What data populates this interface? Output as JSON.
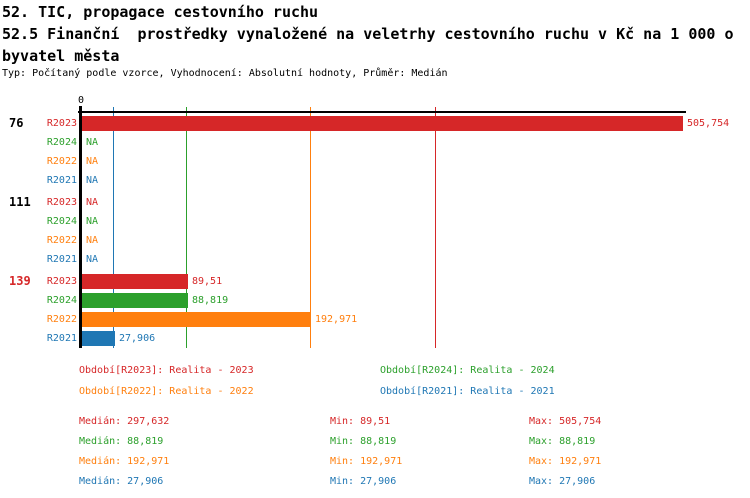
{
  "header": {
    "line1": "52. TIC, propagace cestovního ruchu",
    "line2": "52.5 Finanční  prostředky vynaložené na veletrhy cestovního ruchu v Kč na 1 000 o",
    "line3": "byvatel města",
    "meta": "Typ: Počítaný podle vzorce, Vyhodnocení: Absolutní hodnoty, Průměr: Medián"
  },
  "colors": {
    "R2023": "#d62728",
    "R2024": "#2ca02c",
    "R2022": "#ff7f0e",
    "R2021": "#1f77b4",
    "axis": "#000000",
    "selected_group": "#d62728"
  },
  "chart_data": {
    "type": "bar",
    "orientation": "horizontal",
    "title": "52.5 Finanční prostředky vynaložené na veletrhy cestovního ruchu v Kč na 1 000 obyvatel města",
    "x_axis": {
      "zero_label": "0",
      "max_value": 505.754,
      "grid": "median-lines-per-series"
    },
    "na_text": "NA",
    "series_order": [
      "R2023",
      "R2024",
      "R2022",
      "R2021"
    ],
    "groups": [
      {
        "label": "76",
        "label_color": "#000000",
        "values": {
          "R2023": {
            "num": 505.754,
            "display": "505,754"
          },
          "R2024": {
            "num": null,
            "display": "NA"
          },
          "R2022": {
            "num": null,
            "display": "NA"
          },
          "R2021": {
            "num": null,
            "display": "NA"
          }
        }
      },
      {
        "label": "111",
        "label_color": "#000000",
        "values": {
          "R2023": {
            "num": null,
            "display": "NA"
          },
          "R2024": {
            "num": null,
            "display": "NA"
          },
          "R2022": {
            "num": null,
            "display": "NA"
          },
          "R2021": {
            "num": null,
            "display": "NA"
          }
        }
      },
      {
        "label": "139",
        "label_color": "#d62728",
        "values": {
          "R2023": {
            "num": 89.51,
            "display": "89,51"
          },
          "R2024": {
            "num": 88.819,
            "display": "88,819"
          },
          "R2022": {
            "num": 192.971,
            "display": "192,971"
          },
          "R2021": {
            "num": 27.906,
            "display": "27,906"
          }
        }
      }
    ],
    "median_lines": [
      {
        "series": "R2023",
        "value": 297.632
      },
      {
        "series": "R2024",
        "value": 88.819
      },
      {
        "series": "R2022",
        "value": 192.971
      },
      {
        "series": "R2021",
        "value": 27.906
      }
    ]
  },
  "legend": {
    "items": [
      {
        "label": "Období[R2023]: Realita - 2023",
        "series": "R2023"
      },
      {
        "label": "Období[R2024]: Realita - 2024",
        "series": "R2024"
      },
      {
        "label": "Období[R2022]: Realita - 2022",
        "series": "R2022"
      },
      {
        "label": "Období[R2021]: Realita - 2021",
        "series": "R2021"
      }
    ]
  },
  "stats": {
    "labels": {
      "median": "Medián:",
      "min": "Min:",
      "max": "Max:"
    },
    "rows": [
      {
        "series": "R2023",
        "median": "297,632",
        "min": "89,51",
        "max": "505,754"
      },
      {
        "series": "R2024",
        "median": "88,819",
        "min": "88,819",
        "max": "88,819"
      },
      {
        "series": "R2022",
        "median": "192,971",
        "min": "192,971",
        "max": "192,971"
      },
      {
        "series": "R2021",
        "median": "27,906",
        "min": "27,906",
        "max": "27,906"
      }
    ]
  }
}
